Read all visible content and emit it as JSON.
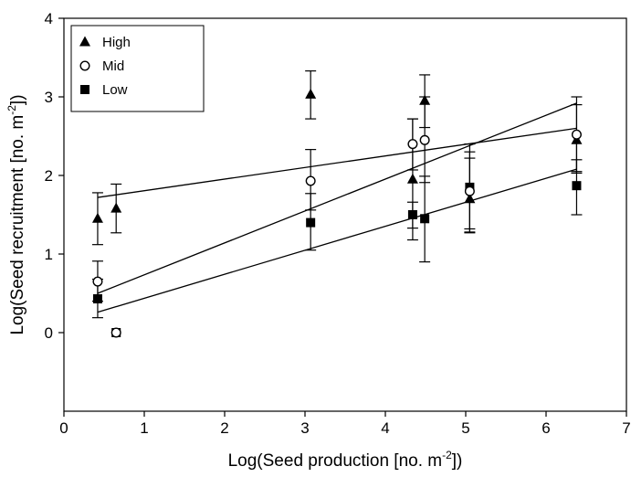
{
  "chart_data": {
    "type": "scatter",
    "xlabel": "Log(Seed production [no. m-2])",
    "ylabel": "Log(Seed recruitment [no. m-2])",
    "xlim": [
      0,
      7
    ],
    "ylim": [
      -1,
      4
    ],
    "x_ticks": [
      "0",
      "1",
      "2",
      "3",
      "4",
      "5",
      "6",
      "7"
    ],
    "y_ticks": [
      "0",
      "1",
      "2",
      "3",
      "4"
    ],
    "grid": false,
    "legend_position": "top-left",
    "series": [
      {
        "name": "High",
        "marker": "triangle",
        "points": [
          {
            "x": 0.42,
            "y": 1.45,
            "lo": 1.12,
            "hi": 1.78
          },
          {
            "x": 0.65,
            "y": 1.58,
            "lo": 1.27,
            "hi": 1.89
          },
          {
            "x": 3.07,
            "y": 3.03,
            "lo": 2.72,
            "hi": 3.33
          },
          {
            "x": 4.34,
            "y": 1.95,
            "lo": 1.18,
            "hi": 2.72
          },
          {
            "x": 4.49,
            "y": 2.95,
            "lo": 2.61,
            "hi": 3.28
          },
          {
            "x": 5.05,
            "y": 1.7,
            "lo": 1.27,
            "hi": 2.22
          },
          {
            "x": 6.38,
            "y": 2.45,
            "lo": 2.03,
            "hi": 2.9
          }
        ],
        "fit": {
          "x": [
            0.42,
            6.38
          ],
          "y": [
            1.72,
            2.6
          ]
        }
      },
      {
        "name": "Mid",
        "marker": "open-circle",
        "points": [
          {
            "x": 0.42,
            "y": 0.65,
            "lo": 0.4,
            "hi": 0.91
          },
          {
            "x": 0.65,
            "y": 0.0,
            "lo": 0.0,
            "hi": 0.0
          },
          {
            "x": 3.07,
            "y": 1.93,
            "lo": 1.56,
            "hi": 2.33
          },
          {
            "x": 4.34,
            "y": 2.4,
            "lo": 2.07,
            "hi": 2.72
          },
          {
            "x": 4.49,
            "y": 2.45,
            "lo": 1.91,
            "hi": 3.0
          },
          {
            "x": 5.05,
            "y": 1.8,
            "lo": 1.32,
            "hi": 2.3
          },
          {
            "x": 6.38,
            "y": 2.52,
            "lo": 2.05,
            "hi": 3.0
          }
        ],
        "fit": {
          "x": [
            0.42,
            6.38
          ],
          "y": [
            0.5,
            2.92
          ]
        }
      },
      {
        "name": "Low",
        "marker": "filled-square",
        "points": [
          {
            "x": 0.42,
            "y": 0.43,
            "lo": 0.19,
            "hi": 0.68
          },
          {
            "x": 0.65,
            "y": 0.0,
            "lo": 0.0,
            "hi": 0.0
          },
          {
            "x": 3.07,
            "y": 1.4,
            "lo": 1.05,
            "hi": 1.77
          },
          {
            "x": 4.34,
            "y": 1.5,
            "lo": 1.33,
            "hi": 1.66
          },
          {
            "x": 4.49,
            "y": 1.45,
            "lo": 0.9,
            "hi": 1.99
          },
          {
            "x": 5.05,
            "y": 1.85,
            "lo": 1.28,
            "hi": 2.4
          },
          {
            "x": 6.38,
            "y": 1.87,
            "lo": 1.5,
            "hi": 2.2
          }
        ],
        "fit": {
          "x": [
            0.42,
            6.38
          ],
          "y": [
            0.26,
            2.08
          ]
        }
      }
    ]
  }
}
